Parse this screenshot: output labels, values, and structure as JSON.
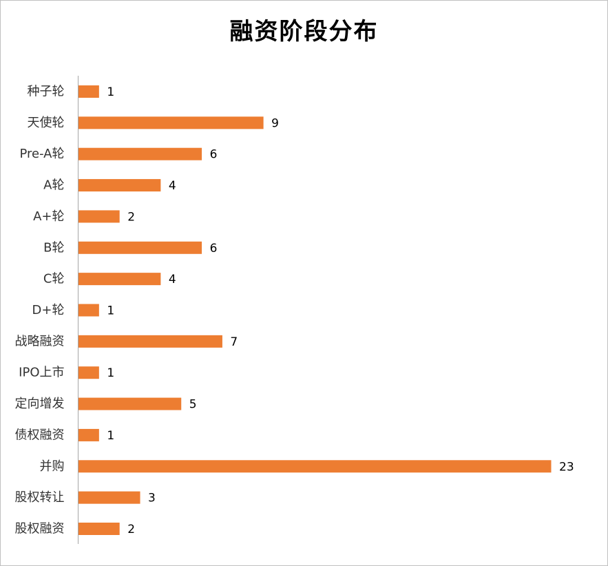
{
  "chart_data": {
    "type": "bar",
    "orientation": "horizontal",
    "title": "融资阶段分布",
    "categories": [
      "种子轮",
      "天使轮",
      "Pre-A轮",
      "A轮",
      "A+轮",
      "B轮",
      "C轮",
      "D+轮",
      "战略融资",
      "IPO上市",
      "定向增发",
      "债权融资",
      "并购",
      "股权转让",
      "股权融资"
    ],
    "values": [
      1,
      9,
      6,
      4,
      2,
      6,
      4,
      1,
      7,
      1,
      5,
      1,
      23,
      3,
      2
    ],
    "xlim": [
      0,
      23
    ],
    "grid": false,
    "legend": "none",
    "data_labels": true,
    "bar_color": "#ED7D31"
  }
}
